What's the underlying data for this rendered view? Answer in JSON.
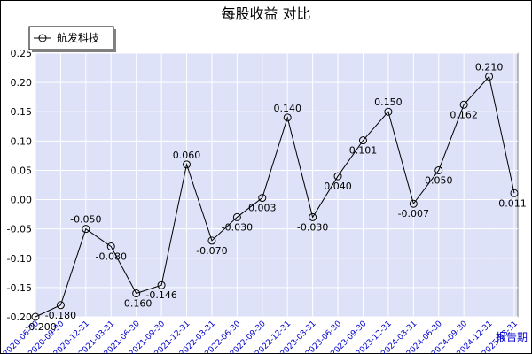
{
  "chart_data": {
    "type": "line",
    "title": "每股收益  对比",
    "xlabel": "报告期",
    "ylabel": "",
    "legend": {
      "placement": "top-left",
      "entries": [
        "航发科技"
      ]
    },
    "grid": true,
    "ylim": [
      -0.2,
      0.25
    ],
    "yticks": [
      "0.25",
      "0.20",
      "0.15",
      "0.10",
      "0.05",
      "0.00",
      "-0.05",
      "-0.10",
      "-0.15",
      "-0.20"
    ],
    "categories": [
      "2020-06-30",
      "2020-09-30",
      "2020-12-31",
      "2021-03-31",
      "2021-06-30",
      "2021-09-30",
      "2021-12-31",
      "2022-03-31",
      "2022-06-30",
      "2022-09-30",
      "2022-12-31",
      "2023-03-31",
      "2023-06-30",
      "2023-09-30",
      "2023-12-31",
      "2024-03-31",
      "2024-06-30",
      "2024-09-30",
      "2024-12-31",
      "2025-03-31"
    ],
    "series": [
      {
        "name": "航发科技",
        "values": [
          -0.2,
          -0.18,
          -0.05,
          -0.08,
          -0.16,
          -0.146,
          0.06,
          -0.07,
          -0.03,
          0.003,
          0.14,
          -0.03,
          0.04,
          0.101,
          0.15,
          -0.007,
          0.05,
          0.162,
          0.21,
          0.011
        ],
        "labels": [
          "-0.200",
          "-0.180",
          "-0.050",
          "-0.080",
          "-0.160",
          "-0.146",
          "0.060",
          "-0.070",
          "-0.030",
          "0.003",
          "0.140",
          "-0.030",
          "0.040",
          "0.101",
          "0.150",
          "-0.007",
          "0.050",
          "0.162",
          "0.210",
          "0.011"
        ]
      }
    ]
  },
  "colors": {
    "plot_bg": "#dde2f8",
    "grid": "#ffffff",
    "line": "#000000",
    "axis_text": "#000000",
    "xlabel_text": "#0000cc"
  }
}
